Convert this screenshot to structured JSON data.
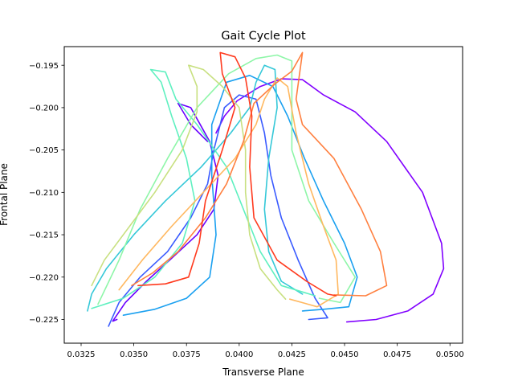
{
  "chart_data": {
    "type": "line",
    "title": "Gait Cycle Plot",
    "xlabel": "Transverse Plane",
    "ylabel": "Frontal Plane",
    "xlim": [
      0.0317,
      0.0506
    ],
    "ylim": [
      -0.2278,
      -0.1928
    ],
    "xticks": [
      0.0325,
      0.035,
      0.0375,
      0.04,
      0.0425,
      0.045,
      0.0475,
      0.05
    ],
    "xtick_labels": [
      "0.0325",
      "0.0350",
      "0.0375",
      "0.0400",
      "0.0425",
      "0.0450",
      "0.0475",
      "0.0500"
    ],
    "yticks": [
      -0.195,
      -0.2,
      -0.205,
      -0.21,
      -0.215,
      -0.22,
      -0.225
    ],
    "ytick_labels": [
      "−0.195",
      "−0.200",
      "−0.205",
      "−0.210",
      "−0.215",
      "−0.220",
      "−0.225"
    ],
    "grid": false,
    "legend": false,
    "series": [
      {
        "color": "#8000ff",
        "points": [
          [
            0.0451,
            -0.2253
          ],
          [
            0.0465,
            -0.225
          ],
          [
            0.048,
            -0.224
          ],
          [
            0.0492,
            -0.222
          ],
          [
            0.0497,
            -0.219
          ],
          [
            0.0496,
            -0.216
          ],
          [
            0.0487,
            -0.21
          ],
          [
            0.047,
            -0.204
          ],
          [
            0.0455,
            -0.2005
          ],
          [
            0.044,
            -0.1985
          ],
          [
            0.043,
            -0.1967
          ],
          [
            0.042,
            -0.1966
          ],
          [
            0.041,
            -0.1975
          ],
          [
            0.0399,
            -0.1992
          ],
          [
            0.0393,
            -0.201
          ],
          [
            0.0389,
            -0.203
          ]
        ]
      },
      {
        "color": "#6a00ff",
        "points": [
          [
            0.0385,
            -0.204
          ],
          [
            0.0377,
            -0.202
          ],
          [
            0.0371,
            -0.1995
          ],
          [
            0.0377,
            -0.2
          ],
          [
            0.0386,
            -0.204
          ],
          [
            0.039,
            -0.208
          ],
          [
            0.0388,
            -0.212
          ],
          [
            0.038,
            -0.215
          ],
          [
            0.0367,
            -0.218
          ],
          [
            0.0356,
            -0.2205
          ],
          [
            0.0346,
            -0.223
          ],
          [
            0.034,
            -0.2252
          ],
          [
            0.0342,
            -0.225
          ]
        ]
      },
      {
        "color": "#3a5bff",
        "points": [
          [
            0.0338,
            -0.2258
          ],
          [
            0.0343,
            -0.223
          ],
          [
            0.0353,
            -0.22
          ],
          [
            0.0366,
            -0.217
          ],
          [
            0.0377,
            -0.213
          ],
          [
            0.0385,
            -0.209
          ],
          [
            0.0388,
            -0.205
          ],
          [
            0.0393,
            -0.2
          ],
          [
            0.04,
            -0.1985
          ],
          [
            0.0408,
            -0.199
          ],
          [
            0.0412,
            -0.203
          ],
          [
            0.0415,
            -0.208
          ],
          [
            0.042,
            -0.213
          ],
          [
            0.0428,
            -0.218
          ],
          [
            0.0436,
            -0.2225
          ],
          [
            0.0442,
            -0.2248
          ],
          [
            0.0433,
            -0.225
          ]
        ]
      },
      {
        "color": "#1aa0f0",
        "points": [
          [
            0.0345,
            -0.2245
          ],
          [
            0.036,
            -0.2238
          ],
          [
            0.0375,
            -0.2225
          ],
          [
            0.0386,
            -0.22
          ],
          [
            0.0389,
            -0.215
          ],
          [
            0.0387,
            -0.208
          ],
          [
            0.0387,
            -0.202
          ],
          [
            0.0394,
            -0.197
          ],
          [
            0.0405,
            -0.1962
          ],
          [
            0.0416,
            -0.1975
          ],
          [
            0.0423,
            -0.201
          ],
          [
            0.0431,
            -0.206
          ],
          [
            0.044,
            -0.211
          ],
          [
            0.045,
            -0.216
          ],
          [
            0.0456,
            -0.22
          ],
          [
            0.0452,
            -0.2235
          ],
          [
            0.044,
            -0.2238
          ],
          [
            0.043,
            -0.224
          ]
        ]
      },
      {
        "color": "#35c8d8",
        "points": [
          [
            0.0328,
            -0.224
          ],
          [
            0.033,
            -0.222
          ],
          [
            0.0337,
            -0.219
          ],
          [
            0.035,
            -0.215
          ],
          [
            0.0365,
            -0.211
          ],
          [
            0.0382,
            -0.207
          ],
          [
            0.0396,
            -0.203
          ],
          [
            0.0405,
            -0.2
          ],
          [
            0.0408,
            -0.197
          ],
          [
            0.0412,
            -0.195
          ],
          [
            0.0417,
            -0.1955
          ],
          [
            0.0418,
            -0.2
          ],
          [
            0.0414,
            -0.206
          ],
          [
            0.0412,
            -0.212
          ],
          [
            0.0414,
            -0.217
          ],
          [
            0.042,
            -0.2205
          ],
          [
            0.043,
            -0.222
          ]
        ]
      },
      {
        "color": "#5ff0c0",
        "points": [
          [
            0.033,
            -0.2237
          ],
          [
            0.0345,
            -0.2225
          ],
          [
            0.036,
            -0.22
          ],
          [
            0.0373,
            -0.216
          ],
          [
            0.0379,
            -0.211
          ],
          [
            0.0375,
            -0.206
          ],
          [
            0.0368,
            -0.201
          ],
          [
            0.0363,
            -0.197
          ],
          [
            0.0358,
            -0.1955
          ],
          [
            0.0365,
            -0.1958
          ],
          [
            0.037,
            -0.199
          ],
          [
            0.038,
            -0.202
          ],
          [
            0.0394,
            -0.207
          ],
          [
            0.0402,
            -0.212
          ],
          [
            0.041,
            -0.217
          ],
          [
            0.042,
            -0.221
          ],
          [
            0.0436,
            -0.2222
          ]
        ]
      },
      {
        "color": "#8ef6a8",
        "points": [
          [
            0.0333,
            -0.2232
          ],
          [
            0.0343,
            -0.218
          ],
          [
            0.0353,
            -0.212
          ],
          [
            0.0366,
            -0.206
          ],
          [
            0.038,
            -0.2
          ],
          [
            0.0395,
            -0.196
          ],
          [
            0.0408,
            -0.1942
          ],
          [
            0.0418,
            -0.1938
          ],
          [
            0.0425,
            -0.1945
          ],
          [
            0.0425,
            -0.199
          ],
          [
            0.0425,
            -0.205
          ],
          [
            0.0433,
            -0.211
          ],
          [
            0.0445,
            -0.216
          ],
          [
            0.0455,
            -0.22
          ],
          [
            0.0448,
            -0.223
          ],
          [
            0.0438,
            -0.2225
          ]
        ]
      },
      {
        "color": "#c8e080",
        "points": [
          [
            0.033,
            -0.221
          ],
          [
            0.0336,
            -0.218
          ],
          [
            0.0348,
            -0.214
          ],
          [
            0.036,
            -0.21
          ],
          [
            0.0373,
            -0.205
          ],
          [
            0.038,
            -0.2005
          ],
          [
            0.038,
            -0.1975
          ],
          [
            0.0376,
            -0.195
          ],
          [
            0.0383,
            -0.1955
          ],
          [
            0.0392,
            -0.1975
          ],
          [
            0.04,
            -0.2
          ],
          [
            0.0403,
            -0.205
          ],
          [
            0.0403,
            -0.21
          ],
          [
            0.0405,
            -0.215
          ],
          [
            0.041,
            -0.219
          ],
          [
            0.0418,
            -0.2215
          ],
          [
            0.0422,
            -0.2226
          ]
        ]
      },
      {
        "color": "#ffb860",
        "points": [
          [
            0.0343,
            -0.2215
          ],
          [
            0.0354,
            -0.218
          ],
          [
            0.0368,
            -0.214
          ],
          [
            0.0383,
            -0.21
          ],
          [
            0.0398,
            -0.206
          ],
          [
            0.0408,
            -0.202
          ],
          [
            0.0412,
            -0.199
          ],
          [
            0.0418,
            -0.1965
          ],
          [
            0.0423,
            -0.1975
          ],
          [
            0.0427,
            -0.203
          ],
          [
            0.0433,
            -0.209
          ],
          [
            0.044,
            -0.214
          ],
          [
            0.0446,
            -0.218
          ],
          [
            0.0447,
            -0.222
          ],
          [
            0.0437,
            -0.2235
          ],
          [
            0.0424,
            -0.2226
          ]
        ]
      },
      {
        "color": "#ff8040",
        "points": [
          [
            0.0349,
            -0.221
          ],
          [
            0.0359,
            -0.2195
          ],
          [
            0.0371,
            -0.217
          ],
          [
            0.0384,
            -0.213
          ],
          [
            0.0394,
            -0.209
          ],
          [
            0.0402,
            -0.204
          ],
          [
            0.0407,
            -0.1995
          ],
          [
            0.0417,
            -0.1972
          ],
          [
            0.0425,
            -0.1957
          ],
          [
            0.043,
            -0.1935
          ],
          [
            0.0427,
            -0.199
          ],
          [
            0.043,
            -0.202
          ],
          [
            0.0445,
            -0.206
          ],
          [
            0.0458,
            -0.212
          ],
          [
            0.0467,
            -0.217
          ],
          [
            0.047,
            -0.221
          ],
          [
            0.046,
            -0.2222
          ],
          [
            0.0445,
            -0.2221
          ]
        ]
      },
      {
        "color": "#ff3a1e",
        "points": [
          [
            0.0352,
            -0.221
          ],
          [
            0.0365,
            -0.2208
          ],
          [
            0.0376,
            -0.22
          ],
          [
            0.0381,
            -0.216
          ],
          [
            0.0384,
            -0.211
          ],
          [
            0.0392,
            -0.205
          ],
          [
            0.0398,
            -0.2
          ],
          [
            0.0392,
            -0.196
          ],
          [
            0.0391,
            -0.1935
          ],
          [
            0.0398,
            -0.194
          ],
          [
            0.0403,
            -0.1965
          ],
          [
            0.0406,
            -0.201
          ],
          [
            0.0405,
            -0.207
          ],
          [
            0.0407,
            -0.213
          ],
          [
            0.0418,
            -0.218
          ],
          [
            0.0432,
            -0.2205
          ],
          [
            0.0442,
            -0.222
          ],
          [
            0.0446,
            -0.2222
          ]
        ]
      }
    ]
  }
}
